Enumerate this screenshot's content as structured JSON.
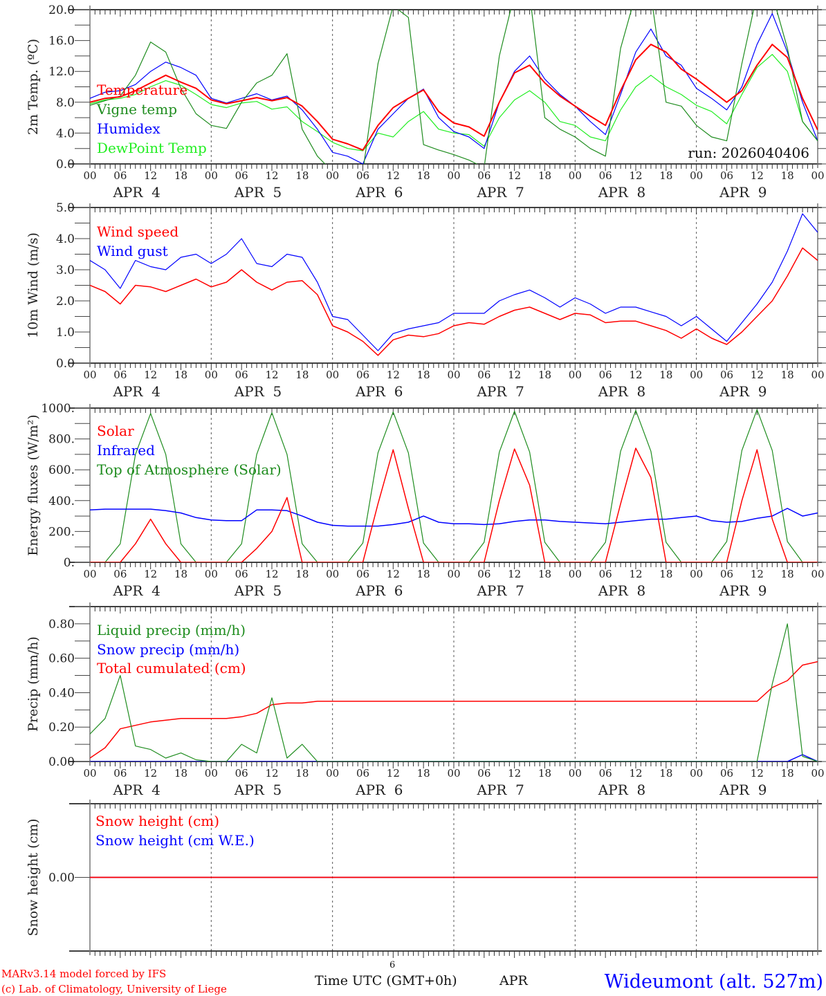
{
  "footer": {
    "credit_line1": "MARv3.14 model forced by IFS",
    "credit_line2": "(c) Lab. of Climatology, University of Liege",
    "month_number": "6",
    "time_axis_label": "Time UTC (GMT+0h)",
    "month_label": "APR",
    "station": "Wideumont (alt. 527m)"
  },
  "colors": {
    "red": "#ff0000",
    "green": "#1e8c1e",
    "blue": "#0000ff",
    "lightgreen": "#22ee22"
  },
  "x_axis": {
    "start_hour": 0,
    "step_hours": 3,
    "end_hour": 144,
    "hour_labels": [
      "00",
      "06",
      "12",
      "18"
    ],
    "final_label": "00",
    "days": [
      "APR  4",
      "APR  5",
      "APR  6",
      "APR  7",
      "APR  8",
      "APR  9"
    ]
  },
  "chart_data": [
    {
      "type": "line",
      "id": "temp",
      "ylabel": "2m Temp. (ºC)",
      "ylim": [
        0,
        20
      ],
      "yticks": [
        "0.0",
        "4.0",
        "8.0",
        "12.0",
        "16.0",
        "20.0"
      ],
      "ytick_values": [
        0,
        4,
        8,
        12,
        16,
        20
      ],
      "minor_step": 2,
      "annotation": "run: 2026040406",
      "legend_placement": "left",
      "series": [
        {
          "name": "Temperature",
          "color": "#ff0000",
          "width": 2,
          "values": [
            8.0,
            8.5,
            8.7,
            9.5,
            10.5,
            11.5,
            10.6,
            9.8,
            8.3,
            7.8,
            8.2,
            8.6,
            8.2,
            8.6,
            7.5,
            5.5,
            3.2,
            2.6,
            1.8,
            5.0,
            7.3,
            8.5,
            9.6,
            6.8,
            5.3,
            4.8,
            3.6,
            8.0,
            11.8,
            12.8,
            10.5,
            8.8,
            7.5,
            6.2,
            5.0,
            9.5,
            13.5,
            15.5,
            14.5,
            12.3,
            11.0,
            9.5,
            8.0,
            9.5,
            12.8,
            15.5,
            13.8,
            8.5,
            4.4
          ]
        },
        {
          "name": "Vigne temp",
          "color": "#1e8c1e",
          "width": 1.2,
          "values": [
            7.6,
            8.2,
            8.8,
            11.5,
            15.8,
            14.5,
            9.8,
            6.5,
            5.0,
            4.6,
            8.0,
            10.5,
            11.5,
            14.3,
            4.5,
            1.0,
            -1,
            -2,
            -1,
            13,
            20.5,
            19,
            2.5,
            1.8,
            1.2,
            0.5,
            -0.5,
            14,
            22,
            22,
            6,
            4.5,
            3.5,
            2,
            1,
            15,
            22,
            22,
            8,
            7.5,
            5,
            3.5,
            3,
            13,
            22,
            22,
            15,
            5.5,
            3.0
          ]
        },
        {
          "name": "Humidex",
          "color": "#0000ff",
          "width": 1.2,
          "values": [
            8.5,
            9.3,
            9.5,
            10.3,
            12.0,
            13.2,
            12.5,
            11.5,
            8.5,
            7.9,
            8.5,
            9.1,
            8.3,
            8.8,
            7.0,
            4.5,
            1.5,
            1.0,
            0.0,
            4.5,
            6.5,
            8.5,
            9.7,
            6.0,
            4.2,
            3.5,
            2.0,
            8.0,
            12.0,
            14.0,
            11.0,
            9.0,
            7.5,
            5.5,
            3.8,
            9.0,
            14.5,
            17.5,
            14.0,
            12.8,
            9.8,
            8.5,
            7.0,
            10.0,
            15.5,
            19.5,
            14.5,
            8.0,
            3.0
          ]
        },
        {
          "name": "DewPoint Temp",
          "color": "#22ee22",
          "width": 1.2,
          "values": [
            7.8,
            8.3,
            8.5,
            9.0,
            10.0,
            10.8,
            10.2,
            9.0,
            7.7,
            7.3,
            7.9,
            8.1,
            7.1,
            7.4,
            5.5,
            4.2,
            2.8,
            2.0,
            1.7,
            4.0,
            3.5,
            5.5,
            6.8,
            4.5,
            4.0,
            3.8,
            2.3,
            6.0,
            8.3,
            9.5,
            8.0,
            5.5,
            5.0,
            3.5,
            3.0,
            7.0,
            10.0,
            11.5,
            10.0,
            9.0,
            7.6,
            6.8,
            5.2,
            9.0,
            12.5,
            14.2,
            12.0,
            5.5,
            3.0
          ]
        }
      ]
    },
    {
      "type": "line",
      "id": "wind",
      "ylabel": "10m Wind (m/s)",
      "ylim": [
        0,
        5
      ],
      "yticks": [
        "0.0",
        "1.0",
        "2.0",
        "3.0",
        "4.0",
        "5.0"
      ],
      "ytick_values": [
        0,
        1,
        2,
        3,
        4,
        5
      ],
      "minor_step": 0.5,
      "legend_placement": "left",
      "series": [
        {
          "name": "Wind speed",
          "color": "#ff0000",
          "width": 1.5,
          "values": [
            2.5,
            2.3,
            1.9,
            2.5,
            2.45,
            2.3,
            2.5,
            2.7,
            2.45,
            2.6,
            3.0,
            2.6,
            2.35,
            2.6,
            2.65,
            2.2,
            1.2,
            1.0,
            0.7,
            0.25,
            0.75,
            0.9,
            0.85,
            0.95,
            1.2,
            1.3,
            1.25,
            1.5,
            1.7,
            1.8,
            1.6,
            1.4,
            1.6,
            1.55,
            1.3,
            1.35,
            1.35,
            1.2,
            1.05,
            0.8,
            1.1,
            0.8,
            0.6,
            1.0,
            1.5,
            2.0,
            2.8,
            3.7,
            3.3
          ]
        },
        {
          "name": "Wind gust",
          "color": "#0000ff",
          "width": 1.2,
          "values": [
            3.3,
            3.0,
            2.4,
            3.3,
            3.1,
            3.0,
            3.4,
            3.5,
            3.2,
            3.5,
            4.0,
            3.2,
            3.1,
            3.5,
            3.4,
            2.6,
            1.5,
            1.4,
            0.9,
            0.4,
            0.95,
            1.1,
            1.2,
            1.3,
            1.6,
            1.6,
            1.6,
            2.0,
            2.2,
            2.35,
            2.1,
            1.8,
            2.1,
            1.9,
            1.6,
            1.8,
            1.8,
            1.65,
            1.5,
            1.2,
            1.5,
            1.1,
            0.7,
            1.3,
            1.9,
            2.6,
            3.6,
            4.8,
            4.2
          ]
        }
      ]
    },
    {
      "type": "line",
      "id": "energy",
      "ylabel": "Energy fluxes (W/m²)",
      "ylim": [
        0,
        1000
      ],
      "yticks": [
        "0.",
        "200.",
        "400.",
        "600.",
        "800.",
        "1000."
      ],
      "ytick_values": [
        0,
        200,
        400,
        600,
        800,
        1000
      ],
      "minor_step": 100,
      "legend_placement": "left",
      "series": [
        {
          "name": "Solar",
          "color": "#ff0000",
          "width": 1.5,
          "values": [
            0,
            0,
            0,
            120,
            280,
            120,
            0,
            0,
            0,
            0,
            0,
            90,
            200,
            420,
            0,
            0,
            0,
            0,
            0,
            380,
            730,
            350,
            0,
            0,
            0,
            0,
            0,
            400,
            735,
            500,
            0,
            0,
            0,
            0,
            0,
            380,
            740,
            550,
            0,
            0,
            0,
            0,
            0,
            400,
            730,
            280,
            0,
            0,
            0
          ]
        },
        {
          "name": "Infrared",
          "color": "#0000ff",
          "width": 1.5,
          "values": [
            340,
            345,
            345,
            345,
            345,
            335,
            320,
            290,
            275,
            270,
            270,
            340,
            340,
            335,
            300,
            260,
            240,
            235,
            235,
            235,
            245,
            260,
            300,
            260,
            250,
            250,
            245,
            250,
            265,
            275,
            275,
            265,
            260,
            255,
            250,
            260,
            270,
            280,
            280,
            290,
            300,
            270,
            260,
            265,
            285,
            300,
            350,
            300,
            320
          ]
        },
        {
          "name": "Top of Atmosphere (Solar)",
          "color": "#1e8c1e",
          "width": 1.2,
          "values": [
            0,
            0,
            120,
            700,
            965,
            700,
            120,
            0,
            0,
            0,
            120,
            700,
            970,
            700,
            120,
            0,
            0,
            0,
            125,
            710,
            975,
            710,
            125,
            0,
            0,
            0,
            130,
            715,
            980,
            715,
            130,
            0,
            0,
            0,
            130,
            720,
            985,
            720,
            130,
            0,
            0,
            0,
            135,
            725,
            990,
            725,
            135,
            0,
            0
          ]
        }
      ]
    },
    {
      "type": "line",
      "id": "precip",
      "ylabel": "Precip (mm/h)",
      "ylim": [
        0,
        0.9
      ],
      "yticks": [
        "0.00",
        "0.20",
        "0.40",
        "0.60",
        "0.80"
      ],
      "ytick_values": [
        0,
        0.2,
        0.4,
        0.6,
        0.8
      ],
      "minor_step": 0.1,
      "legend_placement": "left",
      "series": [
        {
          "name": "Liquid precip (mm/h)",
          "color": "#1e8c1e",
          "width": 1.2,
          "values": [
            0.16,
            0.25,
            0.5,
            0.09,
            0.07,
            0.02,
            0.05,
            0.01,
            0,
            0,
            0.1,
            0.05,
            0.37,
            0.02,
            0.1,
            0,
            0,
            0,
            0,
            0,
            0,
            0,
            0,
            0,
            0,
            0,
            0,
            0,
            0,
            0,
            0,
            0,
            0,
            0,
            0,
            0,
            0,
            0,
            0,
            0,
            0,
            0,
            0,
            0,
            0,
            0.45,
            0.8,
            0.03,
            0
          ]
        },
        {
          "name": "Snow precip (mm/h)",
          "color": "#0000ff",
          "width": 1.5,
          "values": [
            0,
            0,
            0,
            0,
            0,
            0,
            0,
            0,
            0,
            0,
            0,
            0,
            0,
            0,
            0,
            0,
            0,
            0,
            0,
            0,
            0,
            0,
            0,
            0,
            0,
            0,
            0,
            0,
            0,
            0,
            0,
            0,
            0,
            0,
            0,
            0,
            0,
            0,
            0,
            0,
            0,
            0,
            0,
            0,
            0,
            0,
            0,
            0.04,
            0
          ]
        },
        {
          "name": "Total cumulated (cm)",
          "color": "#ff0000",
          "width": 1.5,
          "values": [
            0.02,
            0.08,
            0.19,
            0.21,
            0.23,
            0.24,
            0.25,
            0.25,
            0.25,
            0.25,
            0.26,
            0.28,
            0.33,
            0.34,
            0.34,
            0.35,
            0.35,
            0.35,
            0.35,
            0.35,
            0.35,
            0.35,
            0.35,
            0.35,
            0.35,
            0.35,
            0.35,
            0.35,
            0.35,
            0.35,
            0.35,
            0.35,
            0.35,
            0.35,
            0.35,
            0.35,
            0.35,
            0.35,
            0.35,
            0.35,
            0.35,
            0.35,
            0.35,
            0.35,
            0.35,
            0.43,
            0.47,
            0.56,
            0.58
          ]
        }
      ]
    },
    {
      "type": "line",
      "id": "snow",
      "ylabel": "Snow height (cm)",
      "ylim": [
        -1,
        1
      ],
      "yticks": [
        "0.00"
      ],
      "ytick_values": [
        0
      ],
      "minor_step": 0,
      "hide_x_labels": true,
      "legend_placement": "left",
      "series": [
        {
          "name": "Snow height (cm)",
          "color": "#ff0000",
          "width": 1.5,
          "constant": 0
        },
        {
          "name": "Snow height (cm W.E.)",
          "color": "#0000ff",
          "width": 1.5,
          "constant": 0,
          "hidden_under": true
        }
      ]
    }
  ]
}
